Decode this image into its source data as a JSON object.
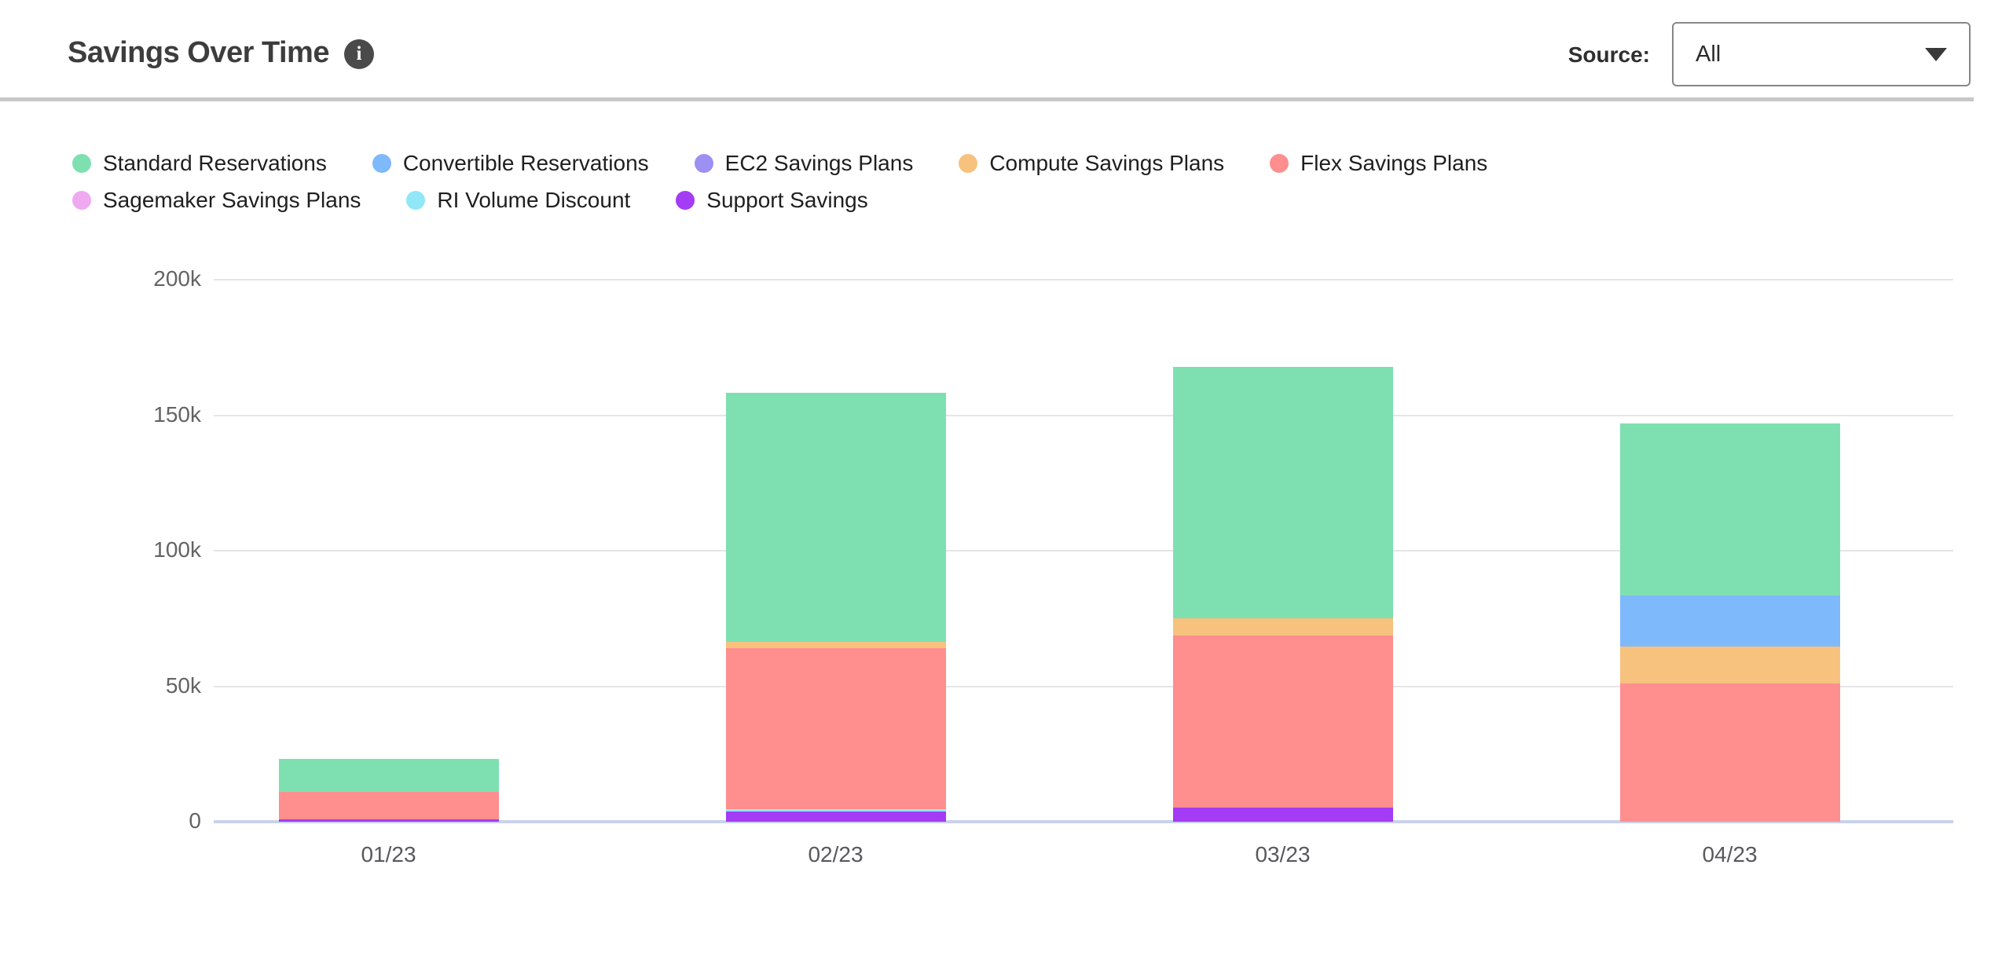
{
  "header": {
    "title": "Savings Over Time",
    "source_label": "Source:",
    "source_value": "All"
  },
  "icons": {
    "info_glyph": "i",
    "caret_icon": "chevron-down"
  },
  "legend": {
    "rows": [
      [
        {
          "label": "Standard Reservations",
          "color": "#7EE0B1"
        },
        {
          "label": "Convertible Reservations",
          "color": "#7EB9FB"
        },
        {
          "label": "EC2 Savings Plans",
          "color": "#9C90F2"
        },
        {
          "label": "Compute Savings Plans",
          "color": "#F6C27E"
        },
        {
          "label": "Flex Savings Plans",
          "color": "#FF8E8E"
        }
      ],
      [
        {
          "label": "Sagemaker Savings Plans",
          "color": "#EFA9F0"
        },
        {
          "label": "RI Volume Discount",
          "color": "#8FE7F8"
        },
        {
          "label": "Support Savings",
          "color": "#A43BF5"
        }
      ]
    ]
  },
  "chart_data": {
    "type": "bar",
    "stacked": true,
    "title": "Savings Over Time",
    "categories": [
      "01/23",
      "02/23",
      "03/23",
      "04/23"
    ],
    "series": [
      {
        "name": "Support Savings",
        "color": "#A43BF5",
        "values": [
          900,
          3800,
          5200,
          0
        ]
      },
      {
        "name": "RI Volume Discount",
        "color": "#8FE7F8",
        "values": [
          0,
          900,
          0,
          0
        ]
      },
      {
        "name": "Sagemaker Savings Plans",
        "color": "#EFA9F0",
        "values": [
          0,
          0,
          0,
          0
        ]
      },
      {
        "name": "Flex Savings Plans",
        "color": "#FF8E8E",
        "values": [
          10100,
          59400,
          63500,
          51000
        ]
      },
      {
        "name": "Compute Savings Plans",
        "color": "#F6C27E",
        "values": [
          0,
          2300,
          6400,
          13600
        ]
      },
      {
        "name": "EC2 Savings Plans",
        "color": "#9C90F2",
        "values": [
          0,
          0,
          0,
          0
        ]
      },
      {
        "name": "Convertible Reservations",
        "color": "#7EB9FB",
        "values": [
          0,
          0,
          0,
          18900
        ]
      },
      {
        "name": "Standard Reservations",
        "color": "#7EE0B1",
        "values": [
          12200,
          91900,
          92600,
          63400
        ]
      }
    ],
    "series_note": "series listed bottom-to-top stack order",
    "ylim": [
      0,
      200000
    ],
    "yticks": [
      {
        "value": 0,
        "label": "0"
      },
      {
        "value": 50000,
        "label": "50k"
      },
      {
        "value": 100000,
        "label": "100k"
      },
      {
        "value": 150000,
        "label": "150k"
      },
      {
        "value": 200000,
        "label": "200k"
      }
    ],
    "xlabel": "",
    "ylabel": "",
    "grid": true,
    "legend_position": "top"
  }
}
